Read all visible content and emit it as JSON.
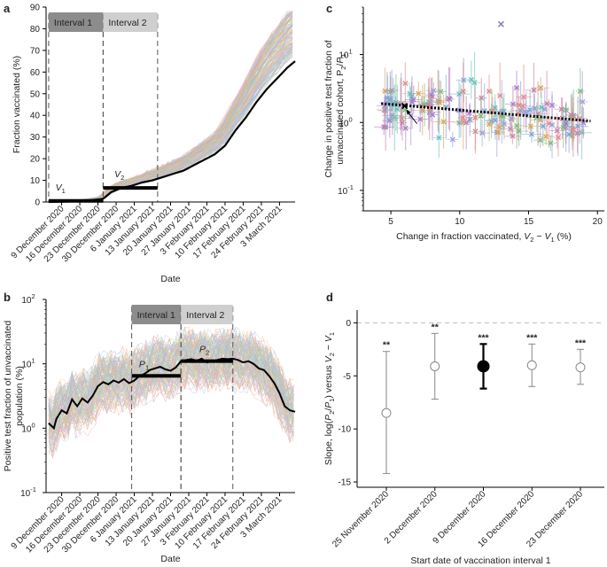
{
  "chart_data": [
    {
      "panel": "a",
      "type": "line",
      "ylabel": "Fraction vaccinated (%)",
      "xlabel": "Date",
      "ylim": [
        0,
        90
      ],
      "yticks": [
        0,
        10,
        20,
        30,
        40,
        50,
        60,
        70,
        80,
        90
      ],
      "x_start": "2020-12-03",
      "x_end": "2021-03-09",
      "xtick_labels": [
        "9 December 2020",
        "16 December 2020",
        "23 December 2020",
        "30 December 2020",
        "6 January 2021",
        "13 January 2021",
        "20 January 2021",
        "27 January 2021",
        "3 February 2021",
        "10 February 2021",
        "17 February 2021",
        "24 February 2021",
        "3 March 2021"
      ],
      "xtick_dates": [
        "2020-12-09",
        "2020-12-16",
        "2020-12-23",
        "2020-12-30",
        "2021-01-06",
        "2021-01-13",
        "2021-01-20",
        "2021-01-27",
        "2021-02-03",
        "2021-02-10",
        "2021-02-17",
        "2021-02-24",
        "2021-03-03"
      ],
      "intervals": [
        {
          "label": "Interval 1",
          "start": "2020-12-04",
          "end": "2020-12-25",
          "value_label": "V",
          "value_sub": "1",
          "value": 0.5
        },
        {
          "label": "Interval 2",
          "start": "2020-12-25",
          "end": "2021-01-15",
          "value_label": "V",
          "value_sub": "2",
          "value": 6.5
        }
      ],
      "mean_series": {
        "dates": [
          "2020-12-04",
          "2020-12-11",
          "2020-12-18",
          "2020-12-25",
          "2020-12-28",
          "2021-01-01",
          "2021-01-05",
          "2021-01-09",
          "2021-01-13",
          "2021-01-17",
          "2021-01-21",
          "2021-01-25",
          "2021-01-29",
          "2021-02-02",
          "2021-02-06",
          "2021-02-10",
          "2021-02-14",
          "2021-02-18",
          "2021-02-22",
          "2021-02-26",
          "2021-03-02",
          "2021-03-06",
          "2021-03-09"
        ],
        "values": [
          0,
          0.2,
          0.5,
          1.5,
          4.5,
          6.5,
          7.5,
          9,
          10,
          11.5,
          13,
          14.5,
          17,
          19.5,
          22,
          26,
          33,
          39,
          46,
          52,
          57,
          62,
          65
        ]
      },
      "cohort_lines": 120
    },
    {
      "panel": "b",
      "type": "line",
      "ylabel": "Positive test fraction of unvaccinated population (%)",
      "xlabel": "Date",
      "yscale": "log",
      "ylim": [
        0.1,
        100
      ],
      "yticks": [
        0.1,
        1,
        10,
        100
      ],
      "ytick_labels": [
        "10",
        "10",
        "10",
        "10"
      ],
      "ytick_exponents": [
        "-1",
        "0",
        "1",
        "2"
      ],
      "x_start": "2020-12-03",
      "x_end": "2021-03-09",
      "xtick_labels": [
        "9 December 2020",
        "16 December 2020",
        "23 December 2020",
        "30 December 2020",
        "6 January 2021",
        "13 January 2021",
        "20 January 2021",
        "27 January 2021",
        "3 February 2021",
        "10 February 2021",
        "17 February 2021",
        "24 February 2021",
        "3 March 2021"
      ],
      "xtick_dates": [
        "2020-12-09",
        "2020-12-16",
        "2020-12-23",
        "2020-12-30",
        "2021-01-06",
        "2021-01-13",
        "2021-01-20",
        "2021-01-27",
        "2021-02-03",
        "2021-02-10",
        "2021-02-17",
        "2021-02-24",
        "2021-03-03"
      ],
      "intervals": [
        {
          "label": "Interval 1",
          "start": "2021-01-05",
          "end": "2021-01-24",
          "value_label": "P",
          "value_sub": "1",
          "value": 6.5
        },
        {
          "label": "Interval 2",
          "start": "2021-01-24",
          "end": "2021-02-13",
          "value_label": "P",
          "value_sub": "2",
          "value": 11
        }
      ],
      "mean_series": {
        "dates": [
          "2020-12-04",
          "2020-12-06",
          "2020-12-07",
          "2020-12-09",
          "2020-12-11",
          "2020-12-13",
          "2020-12-15",
          "2020-12-17",
          "2020-12-19",
          "2020-12-21",
          "2020-12-23",
          "2020-12-25",
          "2020-12-27",
          "2020-12-29",
          "2020-12-31",
          "2021-01-02",
          "2021-01-04",
          "2021-01-06",
          "2021-01-08",
          "2021-01-10",
          "2021-01-12",
          "2021-01-14",
          "2021-01-16",
          "2021-01-18",
          "2021-01-20",
          "2021-01-22",
          "2021-01-24",
          "2021-01-26",
          "2021-01-28",
          "2021-01-30",
          "2021-02-01",
          "2021-02-03",
          "2021-02-05",
          "2021-02-07",
          "2021-02-09",
          "2021-02-11",
          "2021-02-13",
          "2021-02-15",
          "2021-02-17",
          "2021-02-19",
          "2021-02-21",
          "2021-02-23",
          "2021-02-25",
          "2021-02-27",
          "2021-03-01",
          "2021-03-03",
          "2021-03-05",
          "2021-03-07",
          "2021-03-09"
        ],
        "values": [
          1.2,
          1.0,
          1.4,
          1.9,
          1.7,
          2.8,
          2.2,
          2.9,
          2.5,
          3.2,
          4.5,
          5.2,
          4.8,
          5.5,
          5.1,
          5.8,
          5.0,
          5.5,
          6.5,
          7.0,
          8.0,
          8.5,
          9.0,
          8.2,
          7.8,
          8.8,
          11.0,
          11.5,
          11.8,
          11.2,
          12.0,
          10.5,
          11.0,
          11.5,
          12.0,
          11.8,
          12.0,
          11.5,
          10.5,
          11.0,
          10.0,
          8.5,
          8.0,
          6.5,
          5.0,
          3.5,
          2.2,
          1.9,
          1.8
        ]
      },
      "cohort_lines": 120
    },
    {
      "panel": "c",
      "type": "scatter",
      "xlabel": "Change in fraction vaccinated, V",
      "xlabel_parts": [
        "Change in fraction vaccinated, ",
        "V",
        "2",
        " − ",
        "V",
        "1",
        " (%)"
      ],
      "ylabel_line1": "Change in positive test fraction of",
      "ylabel_line2": "unvaccinated cohort, P",
      "ylabel_parts": [
        "2",
        "/",
        "P",
        "1"
      ],
      "yscale": "log",
      "xlim": [
        3,
        20.5
      ],
      "ylim": [
        0.05,
        50
      ],
      "xticks": [
        5,
        10,
        15,
        20
      ],
      "yticks": [
        0.1,
        1,
        10
      ],
      "ytick_labels": [
        "10",
        "10",
        "10"
      ],
      "ytick_exponents": [
        "-1",
        "0",
        "1"
      ],
      "fit": {
        "x": [
          4.3,
          19.5
        ],
        "y": [
          1.9,
          1.05
        ]
      },
      "highlight_point": {
        "x": 6.0,
        "y": 1.75
      },
      "n_points": 150
    },
    {
      "panel": "d",
      "type": "scatter",
      "ylabel": "Slope, log(P",
      "ylabel_parts": [
        "Slope, log(",
        "P",
        "2",
        "/",
        "P",
        "1",
        ") versus ",
        "V",
        "2",
        " − ",
        "V",
        "1"
      ],
      "xlabel": "Start date of vaccination interval 1",
      "ylim": [
        -15.5,
        1.2
      ],
      "yticks": [
        0,
        -5,
        -10,
        -15
      ],
      "categories": [
        "25 November 2020",
        "2 December 2020",
        "9 December 2020",
        "16 December 2020",
        "23 December 2020"
      ],
      "values": [
        -8.5,
        -4.1,
        -4.1,
        -4.0,
        -4.2
      ],
      "err_low": [
        -14.2,
        -7.2,
        -6.2,
        -6.0,
        -5.8
      ],
      "err_high": [
        -2.7,
        -1.0,
        -2.0,
        -2.0,
        -2.5
      ],
      "significance": [
        "**",
        "**",
        "***",
        "***",
        "***"
      ],
      "highlight_index": 2
    }
  ],
  "panel_labels": [
    "a",
    "b",
    "c",
    "d"
  ]
}
